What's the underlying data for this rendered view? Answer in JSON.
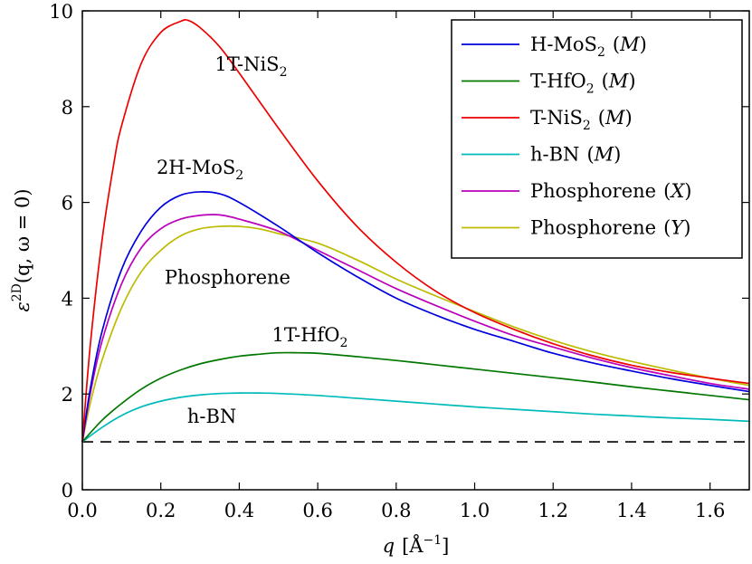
{
  "chart_data": {
    "type": "line",
    "xlabel": {
      "text": "q",
      "unit": "[Å",
      "sup": "−1",
      "close": "]"
    },
    "ylabel": {
      "pre": "ε",
      "sup": "2D",
      "args": "(q, ω = 0)"
    },
    "xlim": [
      0.0,
      1.7
    ],
    "ylim": [
      0,
      10
    ],
    "xticks": [
      0.0,
      0.2,
      0.4,
      0.6,
      0.8,
      1.0,
      1.2,
      1.4,
      1.6
    ],
    "xtick_labels": [
      "0.0",
      "0.2",
      "0.4",
      "0.6",
      "0.8",
      "1.0",
      "1.2",
      "1.4",
      "1.6"
    ],
    "yticks": [
      0,
      2,
      4,
      6,
      8,
      10
    ],
    "ytick_labels": [
      "0",
      "2",
      "4",
      "6",
      "8",
      "10"
    ],
    "baseline": {
      "y": 1,
      "style": "dashed",
      "color": "#000000"
    },
    "series": [
      {
        "name": "H-MoS2",
        "label_main": "H-MoS",
        "label_sub": "2",
        "label_dir": "M",
        "color": "#0000dd",
        "points": [
          [
            0.0,
            1.0
          ],
          [
            0.02,
            2.1
          ],
          [
            0.05,
            3.3
          ],
          [
            0.1,
            4.6
          ],
          [
            0.15,
            5.4
          ],
          [
            0.2,
            5.9
          ],
          [
            0.25,
            6.15
          ],
          [
            0.3,
            6.22
          ],
          [
            0.35,
            6.18
          ],
          [
            0.4,
            6.0
          ],
          [
            0.5,
            5.5
          ],
          [
            0.6,
            4.95
          ],
          [
            0.7,
            4.45
          ],
          [
            0.8,
            4.0
          ],
          [
            0.9,
            3.65
          ],
          [
            1.0,
            3.35
          ],
          [
            1.1,
            3.1
          ],
          [
            1.2,
            2.85
          ],
          [
            1.3,
            2.65
          ],
          [
            1.4,
            2.48
          ],
          [
            1.5,
            2.32
          ],
          [
            1.6,
            2.18
          ],
          [
            1.7,
            2.05
          ]
        ]
      },
      {
        "name": "T-HfO2",
        "label_main": "T-HfO",
        "label_sub": "2",
        "label_dir": "M",
        "color": "#007700",
        "points": [
          [
            0.0,
            1.0
          ],
          [
            0.05,
            1.45
          ],
          [
            0.1,
            1.8
          ],
          [
            0.15,
            2.1
          ],
          [
            0.2,
            2.33
          ],
          [
            0.25,
            2.5
          ],
          [
            0.3,
            2.63
          ],
          [
            0.35,
            2.72
          ],
          [
            0.4,
            2.79
          ],
          [
            0.45,
            2.83
          ],
          [
            0.5,
            2.86
          ],
          [
            0.55,
            2.86
          ],
          [
            0.6,
            2.85
          ],
          [
            0.7,
            2.78
          ],
          [
            0.8,
            2.7
          ],
          [
            0.9,
            2.61
          ],
          [
            1.0,
            2.52
          ],
          [
            1.1,
            2.43
          ],
          [
            1.2,
            2.34
          ],
          [
            1.3,
            2.25
          ],
          [
            1.4,
            2.15
          ],
          [
            1.5,
            2.06
          ],
          [
            1.6,
            1.97
          ],
          [
            1.7,
            1.88
          ]
        ]
      },
      {
        "name": "T-NiS2",
        "label_main": "T-NiS",
        "label_sub": "2",
        "label_dir": "M",
        "color": "#ee0000",
        "points": [
          [
            0.0,
            1.0
          ],
          [
            0.02,
            3.0
          ],
          [
            0.05,
            5.2
          ],
          [
            0.08,
            6.8
          ],
          [
            0.1,
            7.6
          ],
          [
            0.15,
            8.9
          ],
          [
            0.2,
            9.55
          ],
          [
            0.25,
            9.78
          ],
          [
            0.27,
            9.8
          ],
          [
            0.3,
            9.65
          ],
          [
            0.35,
            9.25
          ],
          [
            0.4,
            8.7
          ],
          [
            0.5,
            7.55
          ],
          [
            0.6,
            6.45
          ],
          [
            0.7,
            5.5
          ],
          [
            0.8,
            4.75
          ],
          [
            0.9,
            4.15
          ],
          [
            1.0,
            3.7
          ],
          [
            1.1,
            3.35
          ],
          [
            1.2,
            3.05
          ],
          [
            1.3,
            2.8
          ],
          [
            1.4,
            2.6
          ],
          [
            1.5,
            2.45
          ],
          [
            1.6,
            2.33
          ],
          [
            1.7,
            2.22
          ]
        ]
      },
      {
        "name": "h-BN",
        "label_main": "h-BN",
        "label_sub": "",
        "label_dir": "M",
        "color": "#00bbbb",
        "points": [
          [
            0.0,
            1.0
          ],
          [
            0.05,
            1.3
          ],
          [
            0.1,
            1.55
          ],
          [
            0.15,
            1.73
          ],
          [
            0.2,
            1.85
          ],
          [
            0.25,
            1.93
          ],
          [
            0.3,
            1.98
          ],
          [
            0.35,
            2.01
          ],
          [
            0.4,
            2.02
          ],
          [
            0.45,
            2.02
          ],
          [
            0.5,
            2.01
          ],
          [
            0.6,
            1.97
          ],
          [
            0.7,
            1.91
          ],
          [
            0.8,
            1.85
          ],
          [
            0.9,
            1.79
          ],
          [
            1.0,
            1.73
          ],
          [
            1.1,
            1.68
          ],
          [
            1.2,
            1.63
          ],
          [
            1.3,
            1.58
          ],
          [
            1.4,
            1.54
          ],
          [
            1.5,
            1.5
          ],
          [
            1.6,
            1.47
          ],
          [
            1.7,
            1.43
          ]
        ]
      },
      {
        "name": "Phosphorene (X)",
        "label_main": "Phosphorene",
        "label_sub": "",
        "label_dir": "X",
        "color": "#bb00bb",
        "points": [
          [
            0.0,
            1.0
          ],
          [
            0.02,
            2.0
          ],
          [
            0.05,
            3.1
          ],
          [
            0.1,
            4.3
          ],
          [
            0.15,
            5.05
          ],
          [
            0.2,
            5.45
          ],
          [
            0.25,
            5.65
          ],
          [
            0.3,
            5.73
          ],
          [
            0.35,
            5.74
          ],
          [
            0.4,
            5.65
          ],
          [
            0.5,
            5.4
          ],
          [
            0.6,
            5.0
          ],
          [
            0.7,
            4.6
          ],
          [
            0.8,
            4.2
          ],
          [
            0.9,
            3.85
          ],
          [
            1.0,
            3.52
          ],
          [
            1.1,
            3.22
          ],
          [
            1.2,
            2.98
          ],
          [
            1.3,
            2.75
          ],
          [
            1.4,
            2.55
          ],
          [
            1.5,
            2.38
          ],
          [
            1.6,
            2.22
          ],
          [
            1.7,
            2.1
          ]
        ]
      },
      {
        "name": "Phosphorene (Y)",
        "label_main": "Phosphorene",
        "label_sub": "",
        "label_dir": "Y",
        "color": "#bbbb00",
        "points": [
          [
            0.0,
            1.0
          ],
          [
            0.02,
            1.8
          ],
          [
            0.05,
            2.7
          ],
          [
            0.1,
            3.8
          ],
          [
            0.15,
            4.55
          ],
          [
            0.2,
            5.0
          ],
          [
            0.25,
            5.3
          ],
          [
            0.3,
            5.45
          ],
          [
            0.35,
            5.5
          ],
          [
            0.4,
            5.5
          ],
          [
            0.45,
            5.45
          ],
          [
            0.5,
            5.35
          ],
          [
            0.6,
            5.15
          ],
          [
            0.7,
            4.8
          ],
          [
            0.8,
            4.4
          ],
          [
            0.9,
            4.05
          ],
          [
            1.0,
            3.72
          ],
          [
            1.1,
            3.4
          ],
          [
            1.2,
            3.12
          ],
          [
            1.3,
            2.88
          ],
          [
            1.4,
            2.68
          ],
          [
            1.5,
            2.5
          ],
          [
            1.6,
            2.33
          ],
          [
            1.7,
            2.18
          ]
        ]
      }
    ],
    "annotations": [
      {
        "key": "nis2",
        "main": "1T-NiS",
        "sub": "2",
        "x": 0.43,
        "y": 8.75
      },
      {
        "key": "mos2",
        "main": "2H-MoS",
        "sub": "2",
        "x": 0.3,
        "y": 6.6
      },
      {
        "key": "phos",
        "main": "Phosphorene",
        "sub": "",
        "x": 0.37,
        "y": 4.3
      },
      {
        "key": "hfo2",
        "main": "1T-HfO",
        "sub": "2",
        "x": 0.58,
        "y": 3.1
      },
      {
        "key": "hbn",
        "main": "h-BN",
        "sub": "",
        "x": 0.33,
        "y": 1.4
      }
    ],
    "legend": {
      "position": "top-right"
    }
  }
}
